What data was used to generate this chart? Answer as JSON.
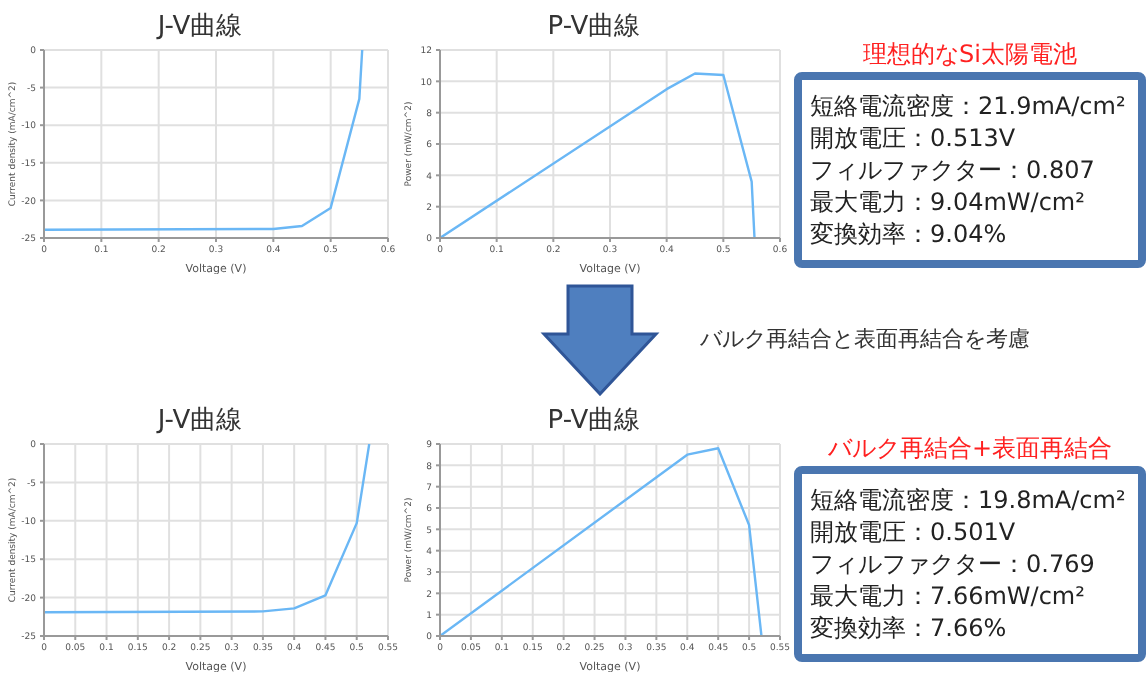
{
  "chart_data": [
    {
      "type": "line",
      "title": "J-V曲線",
      "xlabel": "Voltage (V)",
      "ylabel": "Current density (mA/cm^2)",
      "xlim": [
        0,
        0.6
      ],
      "xticks": [
        0,
        0.1,
        0.2,
        0.3,
        0.4,
        0.5,
        0.6
      ],
      "ylim": [
        -25,
        0
      ],
      "yticks": [
        -25,
        -20,
        -15,
        -10,
        -5,
        0
      ],
      "grid": true,
      "marker": "none",
      "line_style": "solid",
      "legend": false,
      "series": [
        {
          "color": "#6ab7f5",
          "x": [
            0,
            0.4,
            0.45,
            0.5,
            0.55,
            0.555
          ],
          "values": [
            -23.9,
            -23.8,
            -23.4,
            -21,
            -6.5,
            0
          ]
        }
      ]
    },
    {
      "type": "line",
      "title": "P-V曲線",
      "xlabel": "Voltage (V)",
      "ylabel": "Power (mW/cm^2)",
      "xlim": [
        0,
        0.6
      ],
      "xticks": [
        0,
        0.1,
        0.2,
        0.3,
        0.4,
        0.5,
        0.6
      ],
      "ylim": [
        0,
        12
      ],
      "yticks": [
        0,
        2,
        4,
        6,
        8,
        10,
        12
      ],
      "grid": true,
      "marker": "none",
      "line_style": "solid",
      "legend": false,
      "series": [
        {
          "color": "#6ab7f5",
          "x": [
            0,
            0.4,
            0.45,
            0.5,
            0.55,
            0.555
          ],
          "values": [
            0,
            9.5,
            10.5,
            10.4,
            3.6,
            0
          ]
        }
      ]
    },
    {
      "type": "other",
      "title": "理想的なSi太陽電池",
      "annotations": [
        "短絡電流密度：21.9mA/cm²",
        "開放電圧：0.513V",
        "フィルファクター：0.807",
        "最大電力：9.04mW/cm²",
        "変換効率：9.04%"
      ]
    },
    {
      "type": "other",
      "annotations": [
        "バルク再結合と表面再結合を考慮"
      ]
    },
    {
      "type": "line",
      "title": "J-V曲線",
      "xlabel": "Voltage (V)",
      "ylabel": "Current density (mA/cm^2)",
      "xlim": [
        0,
        0.55
      ],
      "xticks": [
        0,
        0.05,
        0.1,
        0.15,
        0.2,
        0.25,
        0.3,
        0.35,
        0.4,
        0.45,
        0.5,
        0.55
      ],
      "ylim": [
        -25,
        0
      ],
      "yticks": [
        -25,
        -20,
        -15,
        -10,
        -5,
        0
      ],
      "grid": true,
      "marker": "none",
      "line_style": "solid",
      "legend": false,
      "series": [
        {
          "color": "#6ab7f5",
          "x": [
            0,
            0.35,
            0.4,
            0.45,
            0.5,
            0.52
          ],
          "values": [
            -21.9,
            -21.8,
            -21.4,
            -19.7,
            -10.3,
            0
          ]
        }
      ]
    },
    {
      "type": "line",
      "title": "P-V曲線",
      "xlabel": "Voltage (V)",
      "ylabel": "Power (mW/cm^2)",
      "xlim": [
        0,
        0.55
      ],
      "xticks": [
        0,
        0.05,
        0.1,
        0.15,
        0.2,
        0.25,
        0.3,
        0.35,
        0.4,
        0.45,
        0.5,
        0.55
      ],
      "ylim": [
        0,
        9
      ],
      "yticks": [
        0,
        1,
        2,
        3,
        4,
        5,
        6,
        7,
        8,
        9
      ],
      "grid": true,
      "marker": "none",
      "line_style": "solid",
      "legend": false,
      "series": [
        {
          "color": "#6ab7f5",
          "x": [
            0,
            0.4,
            0.45,
            0.5,
            0.52
          ],
          "values": [
            0,
            8.5,
            8.8,
            5.2,
            0
          ]
        }
      ]
    },
    {
      "type": "other",
      "title": "バルク再結合+表面再結合",
      "annotations": [
        "短絡電流密度：19.8mA/cm²",
        "開放電圧：0.501V",
        "フィルファクター：0.769",
        "最大電力：7.66mW/cm²",
        "変換効率：7.66%"
      ]
    }
  ]
}
